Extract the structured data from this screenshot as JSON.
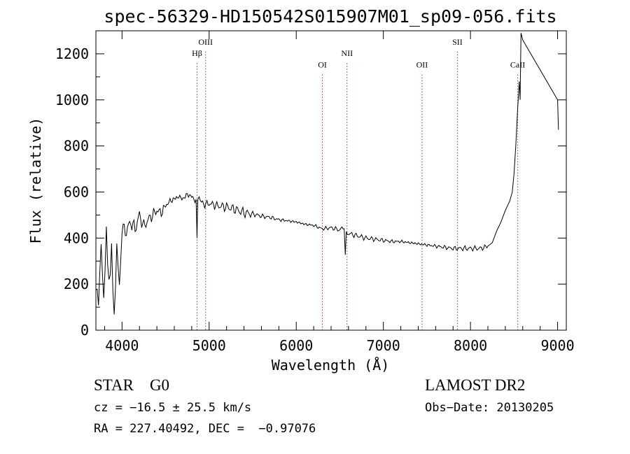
{
  "chart_data": {
    "type": "line",
    "title": "spec-56329-HD150542S015907M01_sp09-056.fits",
    "xlabel": "Wavelength (Å)",
    "ylabel": "Flux (relative)",
    "xlim": [
      3700,
      9100
    ],
    "ylim": [
      0,
      1300
    ],
    "xticks": [
      4000,
      5000,
      6000,
      7000,
      8000,
      9000
    ],
    "yticks": [
      0,
      200,
      400,
      600,
      800,
      1000,
      1200
    ],
    "grid": false,
    "series": [
      {
        "x": [
          3700,
          3730,
          3760,
          3790,
          3820,
          3850,
          3880,
          3910,
          3940,
          3970,
          4000,
          4050,
          4100,
          4150,
          4200,
          4250,
          4300,
          4350,
          4400,
          4450,
          4500,
          4550,
          4600,
          4650,
          4700,
          4750,
          4800,
          4850,
          4861,
          4870,
          4900,
          4950,
          5000,
          5100,
          5200,
          5300,
          5400,
          5500,
          5600,
          5700,
          5800,
          5900,
          6000,
          6100,
          6200,
          6300,
          6400,
          6500,
          6550,
          6563,
          6575,
          6600,
          6700,
          6800,
          6900,
          7000,
          7100,
          7200,
          7300,
          7400,
          7500,
          7600,
          7700,
          7800,
          7900,
          8000,
          8100,
          8150,
          8200,
          8250,
          8300,
          8350,
          8400,
          8450,
          8480,
          8500,
          8520,
          8540,
          8560,
          8570,
          8580,
          8600,
          9000,
          9010
        ],
        "y": [
          250,
          150,
          380,
          120,
          420,
          200,
          380,
          100,
          430,
          260,
          440,
          430,
          470,
          440,
          500,
          450,
          480,
          500,
          520,
          510,
          540,
          560,
          570,
          580,
          570,
          590,
          580,
          560,
          400,
          570,
          560,
          545,
          550,
          540,
          535,
          525,
          510,
          505,
          495,
          490,
          480,
          475,
          470,
          460,
          455,
          440,
          445,
          435,
          450,
          330,
          420,
          420,
          410,
          400,
          395,
          390,
          385,
          385,
          380,
          375,
          370,
          365,
          360,
          355,
          355,
          355,
          355,
          358,
          365,
          380,
          430,
          470,
          520,
          560,
          600,
          680,
          800,
          950,
          1080,
          1000,
          1290,
          1260,
          1000,
          870
        ]
      }
    ],
    "annotations": [
      {
        "label": "Hβ",
        "x": 4861,
        "label_y": 1190
      },
      {
        "label": "OIII",
        "x": 4959,
        "label_y": 1240
      },
      {
        "label": "OI",
        "x": 6300,
        "label_y": 1140
      },
      {
        "label": "NII",
        "x": 6583,
        "label_y": 1190
      },
      {
        "label": "OII",
        "x": 7444,
        "label_y": 1140
      },
      {
        "label": "SII",
        "x": 7850,
        "label_y": 1240
      },
      {
        "label": "CaII",
        "x": 8542,
        "label_y": 1140
      }
    ],
    "line_style": {
      "spectrum_color": "#000000",
      "marker_color": "#b22222"
    }
  },
  "info": {
    "object_class": "STAR    G0",
    "survey": "LAMOST DR2",
    "cz": "cz = −16.5 ± 25.5 km/s",
    "obs_date": "Obs−Date: 20130205",
    "radec": "RA = 227.40492, DEC =  −0.97076"
  }
}
